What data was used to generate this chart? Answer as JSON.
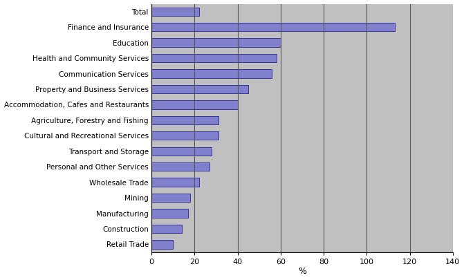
{
  "categories": [
    "Total",
    "Finance and Insurance",
    "Education",
    "Health and Community Services",
    "Communication Services",
    "Property and Business Services",
    "Accommodation, Cafes and Restaurants",
    "Agriculture, Forestry and Fishing",
    "Cultural and Recreational Services",
    "Transport and Storage",
    "Personal and Other Services",
    "Wholesale Trade",
    "Mining",
    "Manufacturing",
    "Construction",
    "Retail Trade"
  ],
  "values": [
    22,
    113,
    60,
    58,
    56,
    45,
    40,
    31,
    31,
    28,
    27,
    22,
    18,
    17,
    14,
    10
  ],
  "bar_color": "#8080cc",
  "bar_edgecolor": "#333399",
  "fig_background": "#ffffff",
  "plot_background": "#c0c0c0",
  "xlabel": "%",
  "xlim": [
    0,
    140
  ],
  "xticks": [
    0,
    20,
    40,
    60,
    80,
    100,
    120,
    140
  ],
  "grid_color": "#555555",
  "bar_height": 0.55
}
